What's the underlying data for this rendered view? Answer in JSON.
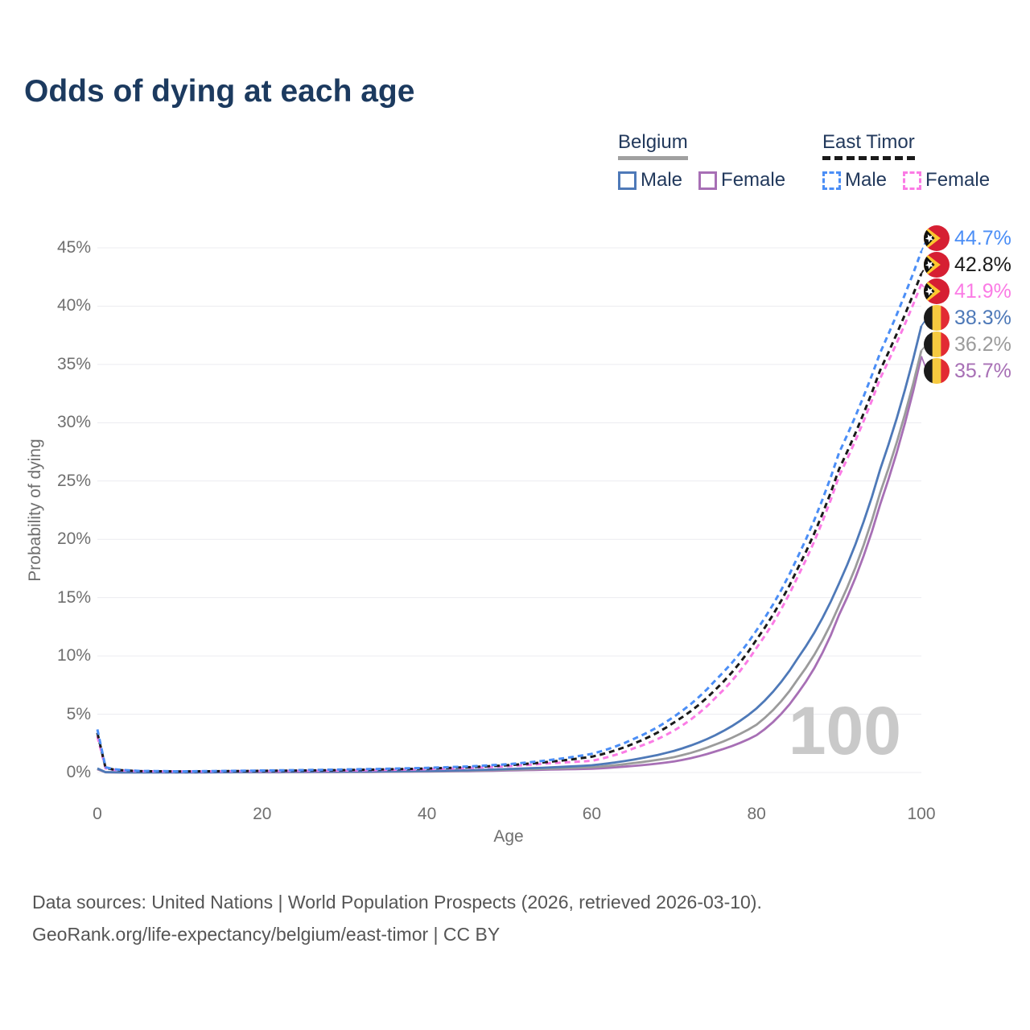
{
  "title": "Odds of dying at each age",
  "legend": {
    "groups": [
      {
        "label": "Belgium",
        "line_style": "solid",
        "line_color": "#a0a0a0",
        "items": [
          {
            "label": "Male",
            "color": "#4e79b8",
            "dashed": false
          },
          {
            "label": "Female",
            "color": "#a76fb5",
            "dashed": false
          }
        ]
      },
      {
        "label": "East Timor",
        "line_style": "dashed",
        "line_color": "#1a1a1a",
        "items": [
          {
            "label": "Male",
            "color": "#4b8ef6",
            "dashed": true
          },
          {
            "label": "Female",
            "color": "#fb7be5",
            "dashed": true
          }
        ]
      }
    ]
  },
  "chart_data": {
    "type": "line",
    "title": "Odds of dying at each age",
    "xlabel": "Age",
    "ylabel": "Probability of dying",
    "xlim": [
      0,
      100
    ],
    "ylim": [
      0,
      45
    ],
    "grid": "horizontal",
    "legend_position": "top-right",
    "watermark": "100",
    "x_ticks": [
      0,
      20,
      40,
      60,
      80,
      100
    ],
    "y_ticks": [
      {
        "value": 0,
        "label": "0%"
      },
      {
        "value": 5,
        "label": "5%"
      },
      {
        "value": 10,
        "label": "10%"
      },
      {
        "value": 15,
        "label": "15%"
      },
      {
        "value": 20,
        "label": "20%"
      },
      {
        "value": 25,
        "label": "25%"
      },
      {
        "value": 30,
        "label": "30%"
      },
      {
        "value": 35,
        "label": "35%"
      },
      {
        "value": 40,
        "label": "40%"
      },
      {
        "value": 45,
        "label": "45%"
      }
    ],
    "x": [
      0,
      1,
      2,
      5,
      10,
      15,
      20,
      25,
      30,
      35,
      40,
      45,
      50,
      55,
      60,
      65,
      70,
      75,
      80,
      85,
      90,
      95,
      100
    ],
    "series": [
      {
        "name": "East Timor Male",
        "country": "East Timor",
        "sex": "male",
        "color": "#4b8ef6",
        "dashed": true,
        "flag": "east-timor",
        "end_label": "44.7%",
        "values": [
          3.7,
          0.45,
          0.28,
          0.14,
          0.1,
          0.13,
          0.17,
          0.21,
          0.26,
          0.32,
          0.4,
          0.52,
          0.72,
          1.08,
          1.6,
          2.85,
          4.8,
          7.9,
          12.2,
          18.5,
          27.4,
          36.0,
          44.7
        ]
      },
      {
        "name": "East Timor Both sexes",
        "country": "East Timor",
        "sex": "both",
        "color": "#1a1a1a",
        "dashed": true,
        "flag": "east-timor",
        "end_label": "42.8%",
        "values": [
          3.4,
          0.4,
          0.25,
          0.12,
          0.09,
          0.11,
          0.14,
          0.17,
          0.21,
          0.27,
          0.34,
          0.45,
          0.63,
          0.93,
          1.35,
          2.45,
          4.3,
          7.1,
          11.4,
          17.5,
          26.0,
          34.5,
          42.8
        ]
      },
      {
        "name": "East Timor Female",
        "country": "East Timor",
        "sex": "female",
        "color": "#fb7be5",
        "dashed": true,
        "flag": "east-timor",
        "end_label": "41.9%",
        "values": [
          3.1,
          0.36,
          0.22,
          0.11,
          0.08,
          0.1,
          0.12,
          0.14,
          0.17,
          0.22,
          0.29,
          0.39,
          0.55,
          0.8,
          1.0,
          2.05,
          3.6,
          6.4,
          10.7,
          16.8,
          25.4,
          33.8,
          41.9
        ]
      },
      {
        "name": "Belgium Male",
        "country": "Belgium",
        "sex": "male",
        "color": "#4e79b8",
        "dashed": false,
        "flag": "belgium",
        "end_label": "38.3%",
        "values": [
          0.35,
          0.03,
          0.02,
          0.01,
          0.01,
          0.03,
          0.06,
          0.07,
          0.08,
          0.1,
          0.14,
          0.2,
          0.3,
          0.44,
          0.62,
          1.1,
          1.86,
          3.2,
          5.5,
          9.8,
          16.2,
          26.0,
          38.3
        ]
      },
      {
        "name": "Belgium Both sexes",
        "country": "Belgium",
        "sex": "both",
        "color": "#9b9b9b",
        "dashed": false,
        "flag": "belgium",
        "end_label": "36.2%",
        "values": [
          0.32,
          0.03,
          0.02,
          0.01,
          0.01,
          0.02,
          0.04,
          0.05,
          0.06,
          0.08,
          0.11,
          0.16,
          0.24,
          0.33,
          0.45,
          0.8,
          1.32,
          2.4,
          4.1,
          8.0,
          14.3,
          24.0,
          36.2
        ]
      },
      {
        "name": "Belgium Female",
        "country": "Belgium",
        "sex": "female",
        "color": "#a76fb5",
        "dashed": false,
        "flag": "belgium",
        "end_label": "35.7%",
        "values": [
          0.28,
          0.02,
          0.01,
          0.01,
          0.01,
          0.02,
          0.02,
          0.03,
          0.04,
          0.06,
          0.08,
          0.12,
          0.18,
          0.25,
          0.32,
          0.56,
          0.95,
          1.8,
          3.2,
          6.8,
          13.5,
          23.0,
          35.7
        ]
      }
    ]
  },
  "footer": {
    "line1": "Data sources: United Nations | World Population Prospects (2026, retrieved 2026-03-10).",
    "line2": "GeoRank.org/life-expectancy/belgium/east-timor | CC BY"
  }
}
